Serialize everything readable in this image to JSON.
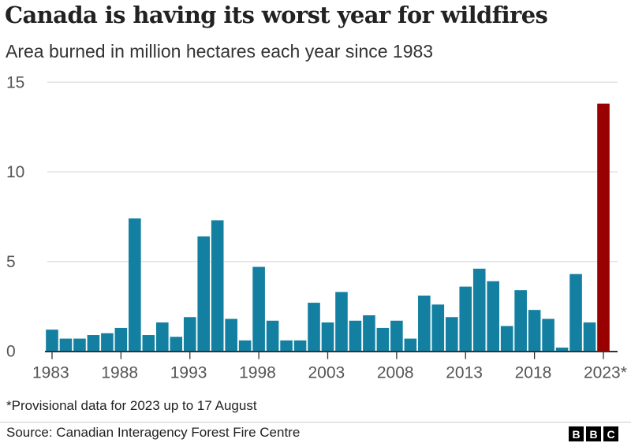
{
  "title": "Canada is having its worst year for wildfires",
  "subtitle": "Area burned in million hectares each year since 1983",
  "footnote": "*Provisional data for 2023 up to 17 August",
  "source": "Source: Canadian Interagency Forest Fire Centre",
  "logo": [
    "B",
    "B",
    "C"
  ],
  "colors": {
    "bar": "#1380a1",
    "highlight": "#990000",
    "grid": "#dddddd",
    "axis": "#333333"
  },
  "chart_data": {
    "type": "bar",
    "title": "Canada is having its worst year for wildfires",
    "ylabel": "",
    "xlabel": "",
    "ylim": [
      0,
      15
    ],
    "yticks": [
      "0",
      "5",
      "10",
      "15"
    ],
    "xticks": [
      "1983",
      "1988",
      "1993",
      "1998",
      "2003",
      "2008",
      "2013",
      "2018",
      "2023*"
    ],
    "grid": true,
    "highlight_category": "2023",
    "categories": [
      "1983",
      "1984",
      "1985",
      "1986",
      "1987",
      "1988",
      "1989",
      "1990",
      "1991",
      "1992",
      "1993",
      "1994",
      "1995",
      "1996",
      "1997",
      "1998",
      "1999",
      "2000",
      "2001",
      "2002",
      "2003",
      "2004",
      "2005",
      "2006",
      "2007",
      "2008",
      "2009",
      "2010",
      "2011",
      "2012",
      "2013",
      "2014",
      "2015",
      "2016",
      "2017",
      "2018",
      "2019",
      "2020",
      "2021",
      "2022",
      "2023"
    ],
    "values": [
      1.2,
      0.7,
      0.7,
      0.9,
      1.0,
      1.3,
      7.4,
      0.9,
      1.6,
      0.8,
      1.9,
      6.4,
      7.3,
      1.8,
      0.6,
      4.7,
      1.7,
      0.6,
      0.6,
      2.7,
      1.6,
      3.3,
      1.7,
      2.0,
      1.3,
      1.7,
      0.7,
      3.1,
      2.6,
      1.9,
      3.6,
      4.6,
      3.9,
      1.4,
      3.4,
      2.3,
      1.8,
      0.2,
      4.3,
      1.6,
      13.8
    ]
  }
}
